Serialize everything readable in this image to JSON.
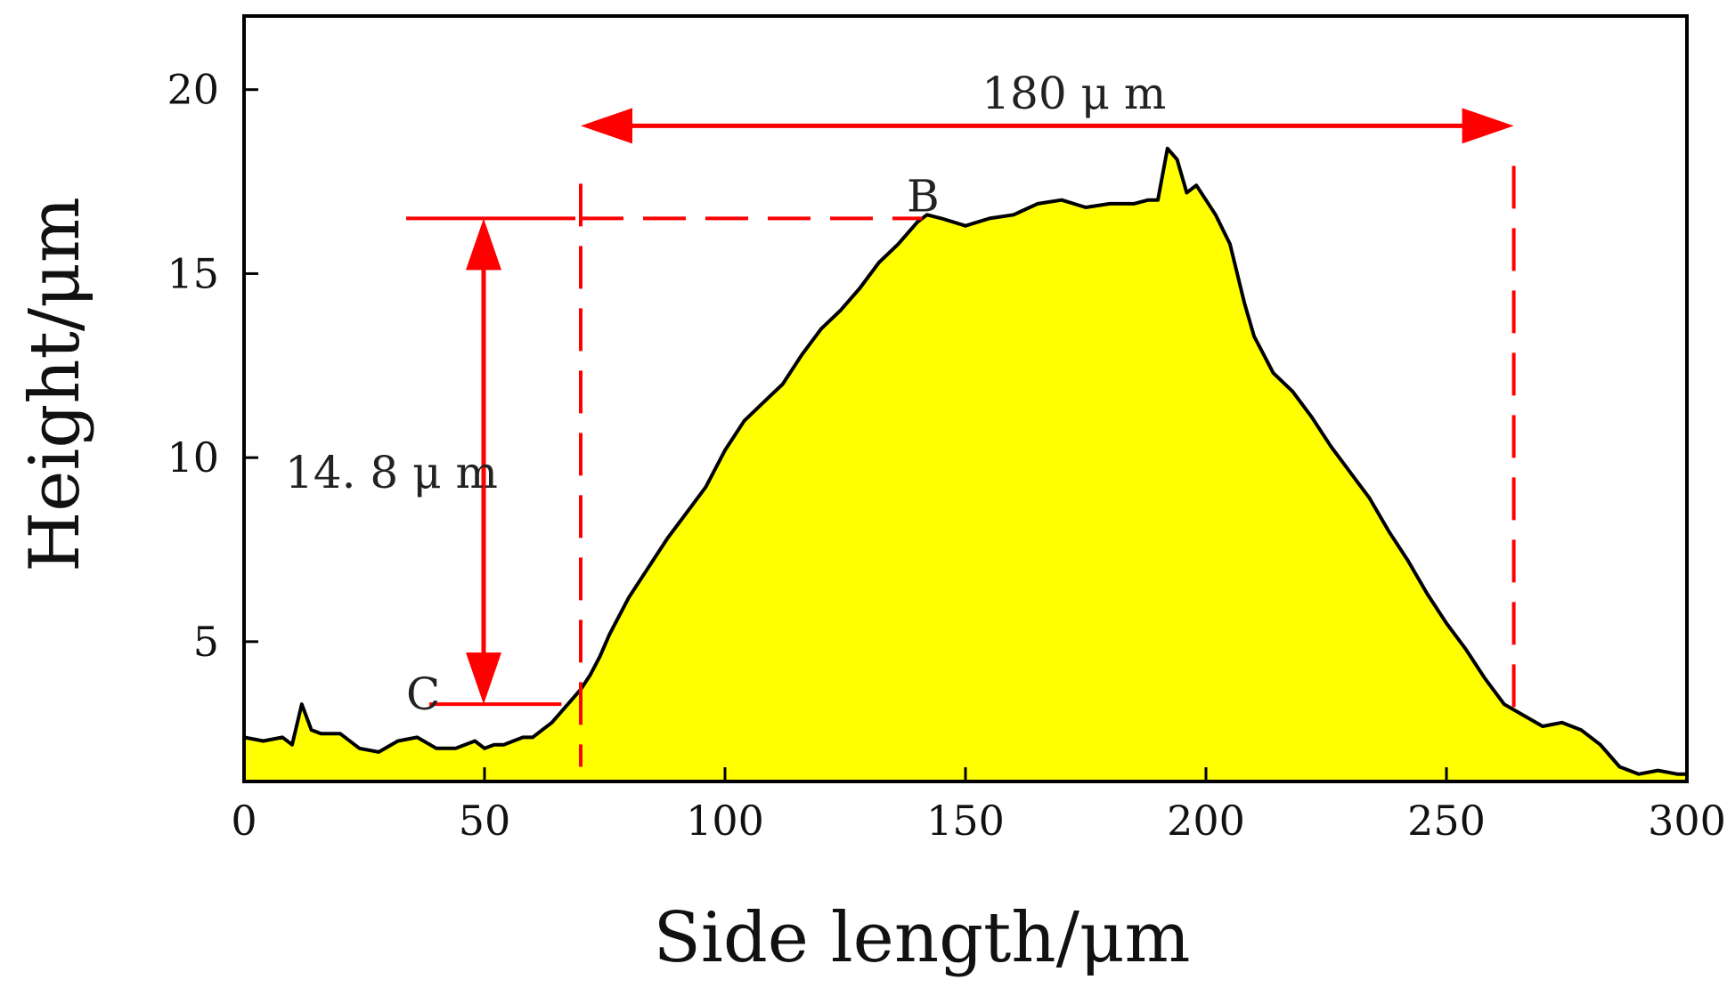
{
  "chart_data": {
    "type": "area",
    "xlabel": "Side length/μm",
    "ylabel": "Height/μm",
    "xlim": [
      0,
      300
    ],
    "ylim": [
      1.2,
      22
    ],
    "xticks": [
      0,
      50,
      100,
      150,
      200,
      250,
      300
    ],
    "yticks": [
      5,
      10,
      15,
      20
    ],
    "grid": false,
    "fill_color": "#ffff00",
    "line_color": "#000000",
    "annotation_color": "#ff0000",
    "series": [
      {
        "x": [
          0,
          4,
          8,
          10,
          12,
          14,
          16,
          20,
          24,
          28,
          32,
          36,
          40,
          44,
          48,
          50,
          52,
          54,
          56,
          58,
          60,
          62,
          64,
          66,
          68,
          70,
          72,
          74,
          76,
          78,
          80,
          84,
          88,
          92,
          96,
          100,
          104,
          108,
          112,
          116,
          120,
          124,
          128,
          132,
          136,
          140,
          142,
          145,
          150,
          155,
          160,
          165,
          170,
          175,
          180,
          185,
          188,
          190,
          192,
          194,
          196,
          198,
          200,
          202,
          205,
          208,
          210,
          214,
          218,
          222,
          226,
          230,
          234,
          238,
          242,
          246,
          250,
          254,
          258,
          262,
          266,
          270,
          274,
          278,
          282,
          286,
          290,
          294,
          298,
          300
        ],
        "y": [
          2.4,
          2.3,
          2.4,
          2.2,
          3.3,
          2.6,
          2.5,
          2.5,
          2.1,
          2.0,
          2.3,
          2.4,
          2.1,
          2.1,
          2.3,
          2.1,
          2.2,
          2.2,
          2.3,
          2.4,
          2.4,
          2.6,
          2.8,
          3.1,
          3.4,
          3.7,
          4.1,
          4.6,
          5.2,
          5.7,
          6.2,
          7.0,
          7.8,
          8.5,
          9.2,
          10.2,
          11.0,
          11.5,
          12.0,
          12.8,
          13.5,
          14.0,
          14.6,
          15.3,
          15.8,
          16.4,
          16.6,
          16.5,
          16.3,
          16.5,
          16.6,
          16.9,
          17.0,
          16.8,
          16.9,
          16.9,
          17.0,
          17.0,
          18.4,
          18.1,
          17.2,
          17.4,
          17.0,
          16.6,
          15.8,
          14.2,
          13.3,
          12.3,
          11.8,
          11.1,
          10.3,
          9.6,
          8.9,
          8.0,
          7.2,
          6.3,
          5.5,
          4.8,
          4.0,
          3.3,
          3.0,
          2.7,
          2.8,
          2.6,
          2.2,
          1.6,
          1.4,
          1.5,
          1.4,
          1.4
        ]
      }
    ],
    "annotations": {
      "width_label": "180 μ m",
      "height_label": "14. 8 μ m",
      "point_b_label": "B",
      "point_c_label": "C",
      "width_x_start": 70,
      "width_x_end": 264,
      "width_arrow_y": 19.5,
      "level_b_y": 16.5,
      "level_c_y": 3.3
    }
  }
}
